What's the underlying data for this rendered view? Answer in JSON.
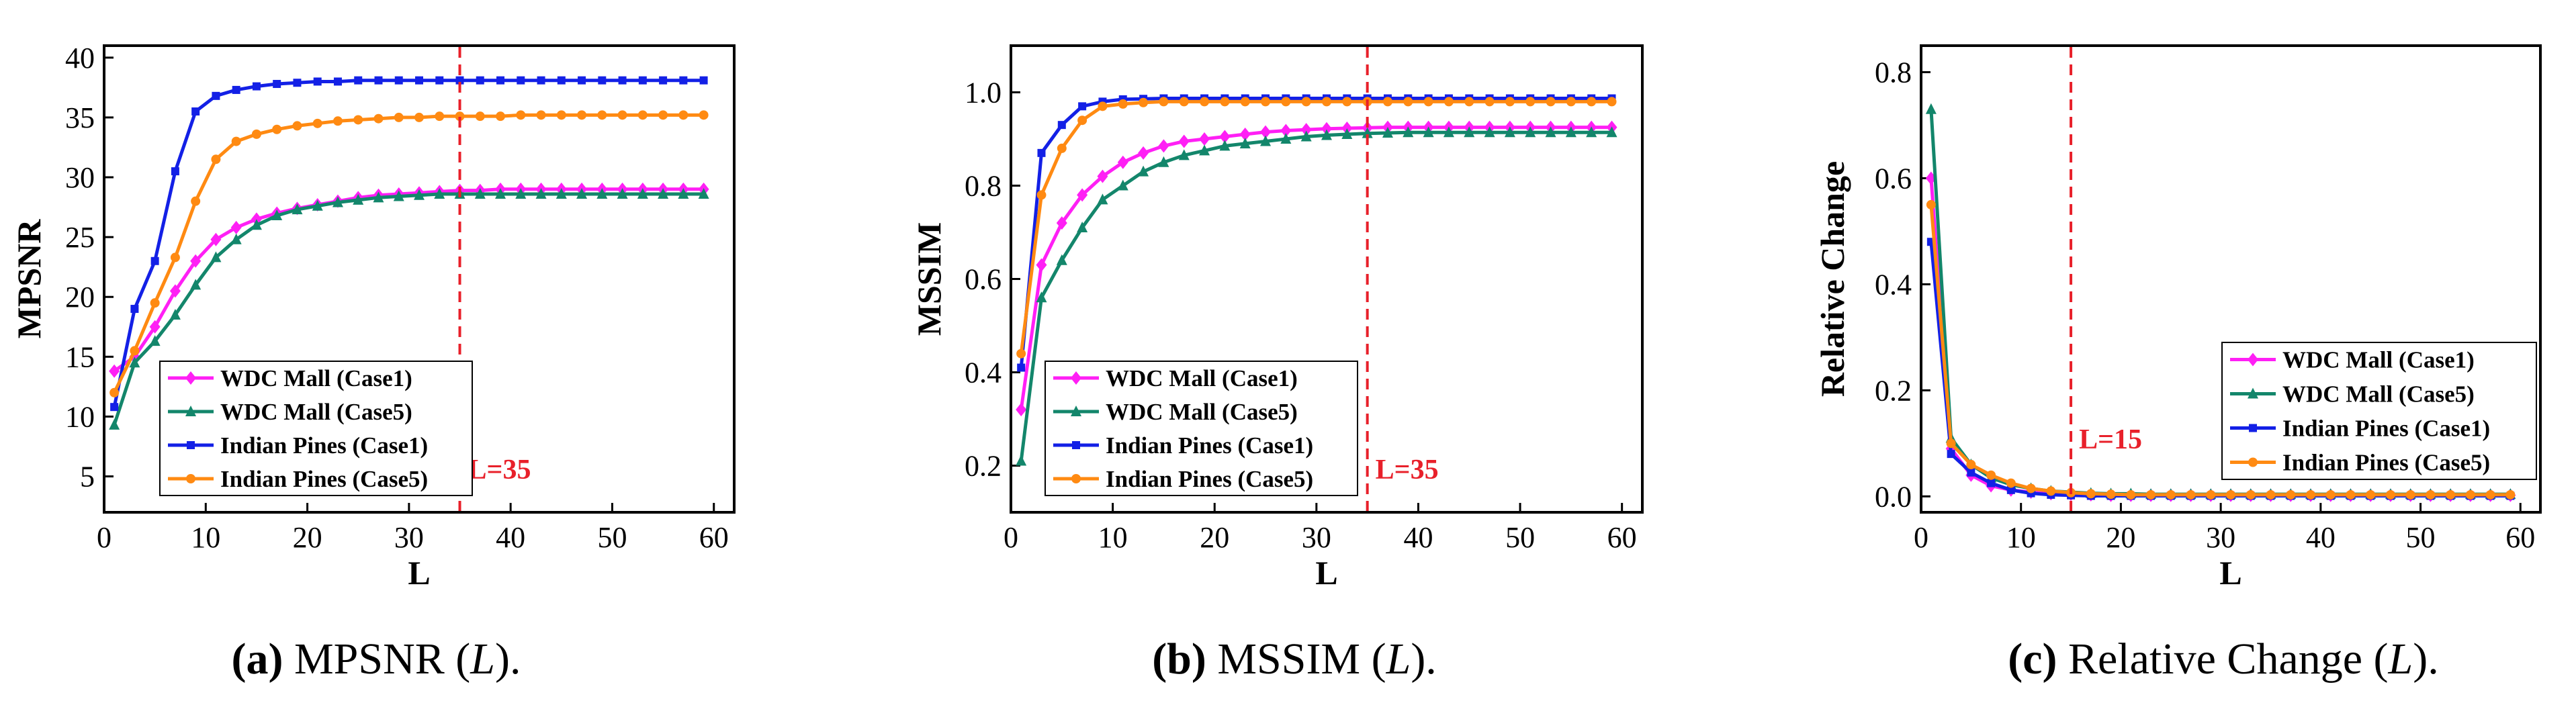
{
  "colors": {
    "wdc_case1": "#ff1ff5",
    "wdc_case5": "#13866b",
    "ip_case1": "#1320e6",
    "ip_case5": "#ff8a12",
    "marker_line": "#e8202a"
  },
  "chart_data": [
    {
      "type": "line",
      "title": "",
      "xlabel": "L",
      "ylabel": "MPSNR",
      "xlim": [
        0,
        62
      ],
      "ylim": [
        2,
        41
      ],
      "xticks": [
        0,
        10,
        20,
        30,
        40,
        50,
        60
      ],
      "yticks": [
        5,
        10,
        15,
        20,
        25,
        30,
        35,
        40
      ],
      "legend_position": "bottom-left",
      "vline": {
        "x": 35,
        "label": "L=35"
      },
      "x": [
        1,
        3,
        5,
        7,
        9,
        11,
        13,
        15,
        17,
        19,
        21,
        23,
        25,
        27,
        29,
        31,
        33,
        35,
        37,
        39,
        41,
        43,
        45,
        47,
        49,
        51,
        53,
        55,
        57,
        59
      ],
      "series": [
        {
          "name": "WDC Mall (Case1)",
          "color_key": "wdc_case1",
          "marker": "diamond",
          "values": [
            13.8,
            15.0,
            17.5,
            20.5,
            23.0,
            24.8,
            25.8,
            26.5,
            27.0,
            27.4,
            27.7,
            28.0,
            28.3,
            28.5,
            28.6,
            28.7,
            28.8,
            28.9,
            28.9,
            29.0,
            29.0,
            29.0,
            29.0,
            29.0,
            29.0,
            29.0,
            29.0,
            29.0,
            29.0,
            29.0
          ]
        },
        {
          "name": "WDC Mall (Case5)",
          "color_key": "wdc_case5",
          "marker": "triangle",
          "values": [
            9.3,
            14.5,
            16.3,
            18.5,
            21.0,
            23.3,
            24.8,
            26.0,
            26.8,
            27.3,
            27.6,
            27.9,
            28.1,
            28.3,
            28.4,
            28.5,
            28.6,
            28.6,
            28.6,
            28.6,
            28.6,
            28.6,
            28.6,
            28.6,
            28.6,
            28.6,
            28.6,
            28.6,
            28.6,
            28.6
          ]
        },
        {
          "name": "Indian Pines (Case1)",
          "color_key": "ip_case1",
          "marker": "square",
          "values": [
            10.8,
            19.0,
            23.0,
            30.5,
            35.5,
            36.8,
            37.3,
            37.6,
            37.8,
            37.9,
            38.0,
            38.0,
            38.1,
            38.1,
            38.1,
            38.1,
            38.1,
            38.1,
            38.1,
            38.1,
            38.1,
            38.1,
            38.1,
            38.1,
            38.1,
            38.1,
            38.1,
            38.1,
            38.1,
            38.1
          ]
        },
        {
          "name": "Indian Pines (Case5)",
          "color_key": "ip_case5",
          "marker": "circle",
          "values": [
            12.0,
            15.5,
            19.5,
            23.3,
            28.0,
            31.5,
            33.0,
            33.6,
            34.0,
            34.3,
            34.5,
            34.7,
            34.8,
            34.9,
            35.0,
            35.0,
            35.1,
            35.1,
            35.1,
            35.1,
            35.2,
            35.2,
            35.2,
            35.2,
            35.2,
            35.2,
            35.2,
            35.2,
            35.2,
            35.2
          ]
        }
      ]
    },
    {
      "type": "line",
      "title": "",
      "xlabel": "L",
      "ylabel": "MSSIM",
      "xlim": [
        0,
        62
      ],
      "ylim": [
        0.1,
        1.1
      ],
      "xticks": [
        0,
        10,
        20,
        30,
        40,
        50,
        60
      ],
      "yticks": [
        0.2,
        0.4,
        0.6,
        0.8,
        1.0
      ],
      "ytick_labels": [
        "0.2",
        "0.4",
        "0.6",
        "0.8",
        "1.0"
      ],
      "legend_position": "bottom-left",
      "vline": {
        "x": 35,
        "label": "L=35"
      },
      "x": [
        1,
        3,
        5,
        7,
        9,
        11,
        13,
        15,
        17,
        19,
        21,
        23,
        25,
        27,
        29,
        31,
        33,
        35,
        37,
        39,
        41,
        43,
        45,
        47,
        49,
        51,
        53,
        55,
        57,
        59
      ],
      "series": [
        {
          "name": "WDC Mall (Case1)",
          "color_key": "wdc_case1",
          "marker": "diamond",
          "values": [
            0.32,
            0.63,
            0.72,
            0.78,
            0.82,
            0.85,
            0.87,
            0.885,
            0.895,
            0.9,
            0.905,
            0.91,
            0.915,
            0.918,
            0.92,
            0.922,
            0.923,
            0.924,
            0.925,
            0.925,
            0.925,
            0.925,
            0.925,
            0.925,
            0.925,
            0.925,
            0.925,
            0.925,
            0.925,
            0.925
          ]
        },
        {
          "name": "WDC Mall (Case5)",
          "color_key": "wdc_case5",
          "marker": "triangle",
          "values": [
            0.21,
            0.56,
            0.64,
            0.71,
            0.77,
            0.8,
            0.83,
            0.85,
            0.865,
            0.875,
            0.885,
            0.89,
            0.895,
            0.9,
            0.905,
            0.908,
            0.91,
            0.912,
            0.913,
            0.914,
            0.914,
            0.914,
            0.914,
            0.914,
            0.914,
            0.914,
            0.914,
            0.914,
            0.914,
            0.914
          ]
        },
        {
          "name": "Indian Pines (Case1)",
          "color_key": "ip_case1",
          "marker": "square",
          "values": [
            0.41,
            0.87,
            0.93,
            0.97,
            0.98,
            0.985,
            0.986,
            0.987,
            0.987,
            0.987,
            0.987,
            0.987,
            0.987,
            0.987,
            0.987,
            0.987,
            0.987,
            0.987,
            0.987,
            0.987,
            0.987,
            0.987,
            0.987,
            0.987,
            0.987,
            0.987,
            0.987,
            0.987,
            0.987,
            0.987
          ]
        },
        {
          "name": "Indian Pines (Case5)",
          "color_key": "ip_case5",
          "marker": "circle",
          "values": [
            0.44,
            0.78,
            0.88,
            0.94,
            0.97,
            0.975,
            0.978,
            0.98,
            0.98,
            0.98,
            0.98,
            0.98,
            0.98,
            0.98,
            0.98,
            0.98,
            0.98,
            0.98,
            0.98,
            0.98,
            0.98,
            0.98,
            0.98,
            0.98,
            0.98,
            0.98,
            0.98,
            0.98,
            0.98,
            0.98
          ]
        }
      ]
    },
    {
      "type": "line",
      "title": "",
      "xlabel": "L",
      "ylabel": "Relative Change",
      "xlim": [
        0,
        62
      ],
      "ylim": [
        -0.03,
        0.85
      ],
      "xticks": [
        0,
        10,
        20,
        30,
        40,
        50,
        60
      ],
      "yticks": [
        0.0,
        0.2,
        0.4,
        0.6,
        0.8
      ],
      "ytick_labels": [
        "0.0",
        "0.2",
        "0.4",
        "0.6",
        "0.8"
      ],
      "legend_position": "right",
      "vline": {
        "x": 15,
        "label": "L=15"
      },
      "x": [
        1,
        3,
        5,
        7,
        9,
        11,
        13,
        15,
        17,
        19,
        21,
        23,
        25,
        27,
        29,
        31,
        33,
        35,
        37,
        39,
        41,
        43,
        45,
        47,
        49,
        51,
        53,
        55,
        57,
        59
      ],
      "series": [
        {
          "name": "WDC Mall (Case1)",
          "color_key": "wdc_case1",
          "marker": "diamond",
          "values": [
            0.6,
            0.09,
            0.04,
            0.02,
            0.012,
            0.008,
            0.005,
            0.004,
            0.003,
            0.002,
            0.002,
            0.002,
            0.002,
            0.002,
            0.002,
            0.002,
            0.002,
            0.002,
            0.002,
            0.002,
            0.002,
            0.002,
            0.002,
            0.002,
            0.002,
            0.002,
            0.002,
            0.002,
            0.002,
            0.002
          ]
        },
        {
          "name": "WDC Mall (Case5)",
          "color_key": "wdc_case5",
          "marker": "triangle",
          "values": [
            0.73,
            0.11,
            0.06,
            0.035,
            0.022,
            0.015,
            0.01,
            0.008,
            0.006,
            0.005,
            0.005,
            0.004,
            0.004,
            0.004,
            0.004,
            0.004,
            0.004,
            0.004,
            0.004,
            0.004,
            0.004,
            0.004,
            0.004,
            0.004,
            0.004,
            0.004,
            0.004,
            0.004,
            0.004,
            0.004
          ]
        },
        {
          "name": "Indian Pines (Case1)",
          "color_key": "ip_case1",
          "marker": "square",
          "values": [
            0.48,
            0.08,
            0.045,
            0.025,
            0.012,
            0.006,
            0.003,
            0.002,
            0.001,
            0.001,
            0.001,
            0.001,
            0.001,
            0.001,
            0.001,
            0.001,
            0.001,
            0.001,
            0.001,
            0.001,
            0.001,
            0.001,
            0.001,
            0.001,
            0.001,
            0.001,
            0.001,
            0.001,
            0.001,
            0.001
          ]
        },
        {
          "name": "Indian Pines (Case5)",
          "color_key": "ip_case5",
          "marker": "circle",
          "values": [
            0.55,
            0.1,
            0.06,
            0.04,
            0.025,
            0.015,
            0.01,
            0.007,
            0.005,
            0.004,
            0.003,
            0.003,
            0.003,
            0.003,
            0.003,
            0.003,
            0.003,
            0.003,
            0.003,
            0.003,
            0.003,
            0.003,
            0.003,
            0.003,
            0.003,
            0.003,
            0.003,
            0.003,
            0.003,
            0.003
          ]
        }
      ]
    }
  ],
  "captions": [
    {
      "letter": "(a)",
      "text": " MPSNR (",
      "var": "L",
      "end": ")."
    },
    {
      "letter": "(b)",
      "text": " MSSIM (",
      "var": "L",
      "end": ")."
    },
    {
      "letter": "(c)",
      "text": " Relative Change (",
      "var": "L",
      "end": ")."
    }
  ]
}
